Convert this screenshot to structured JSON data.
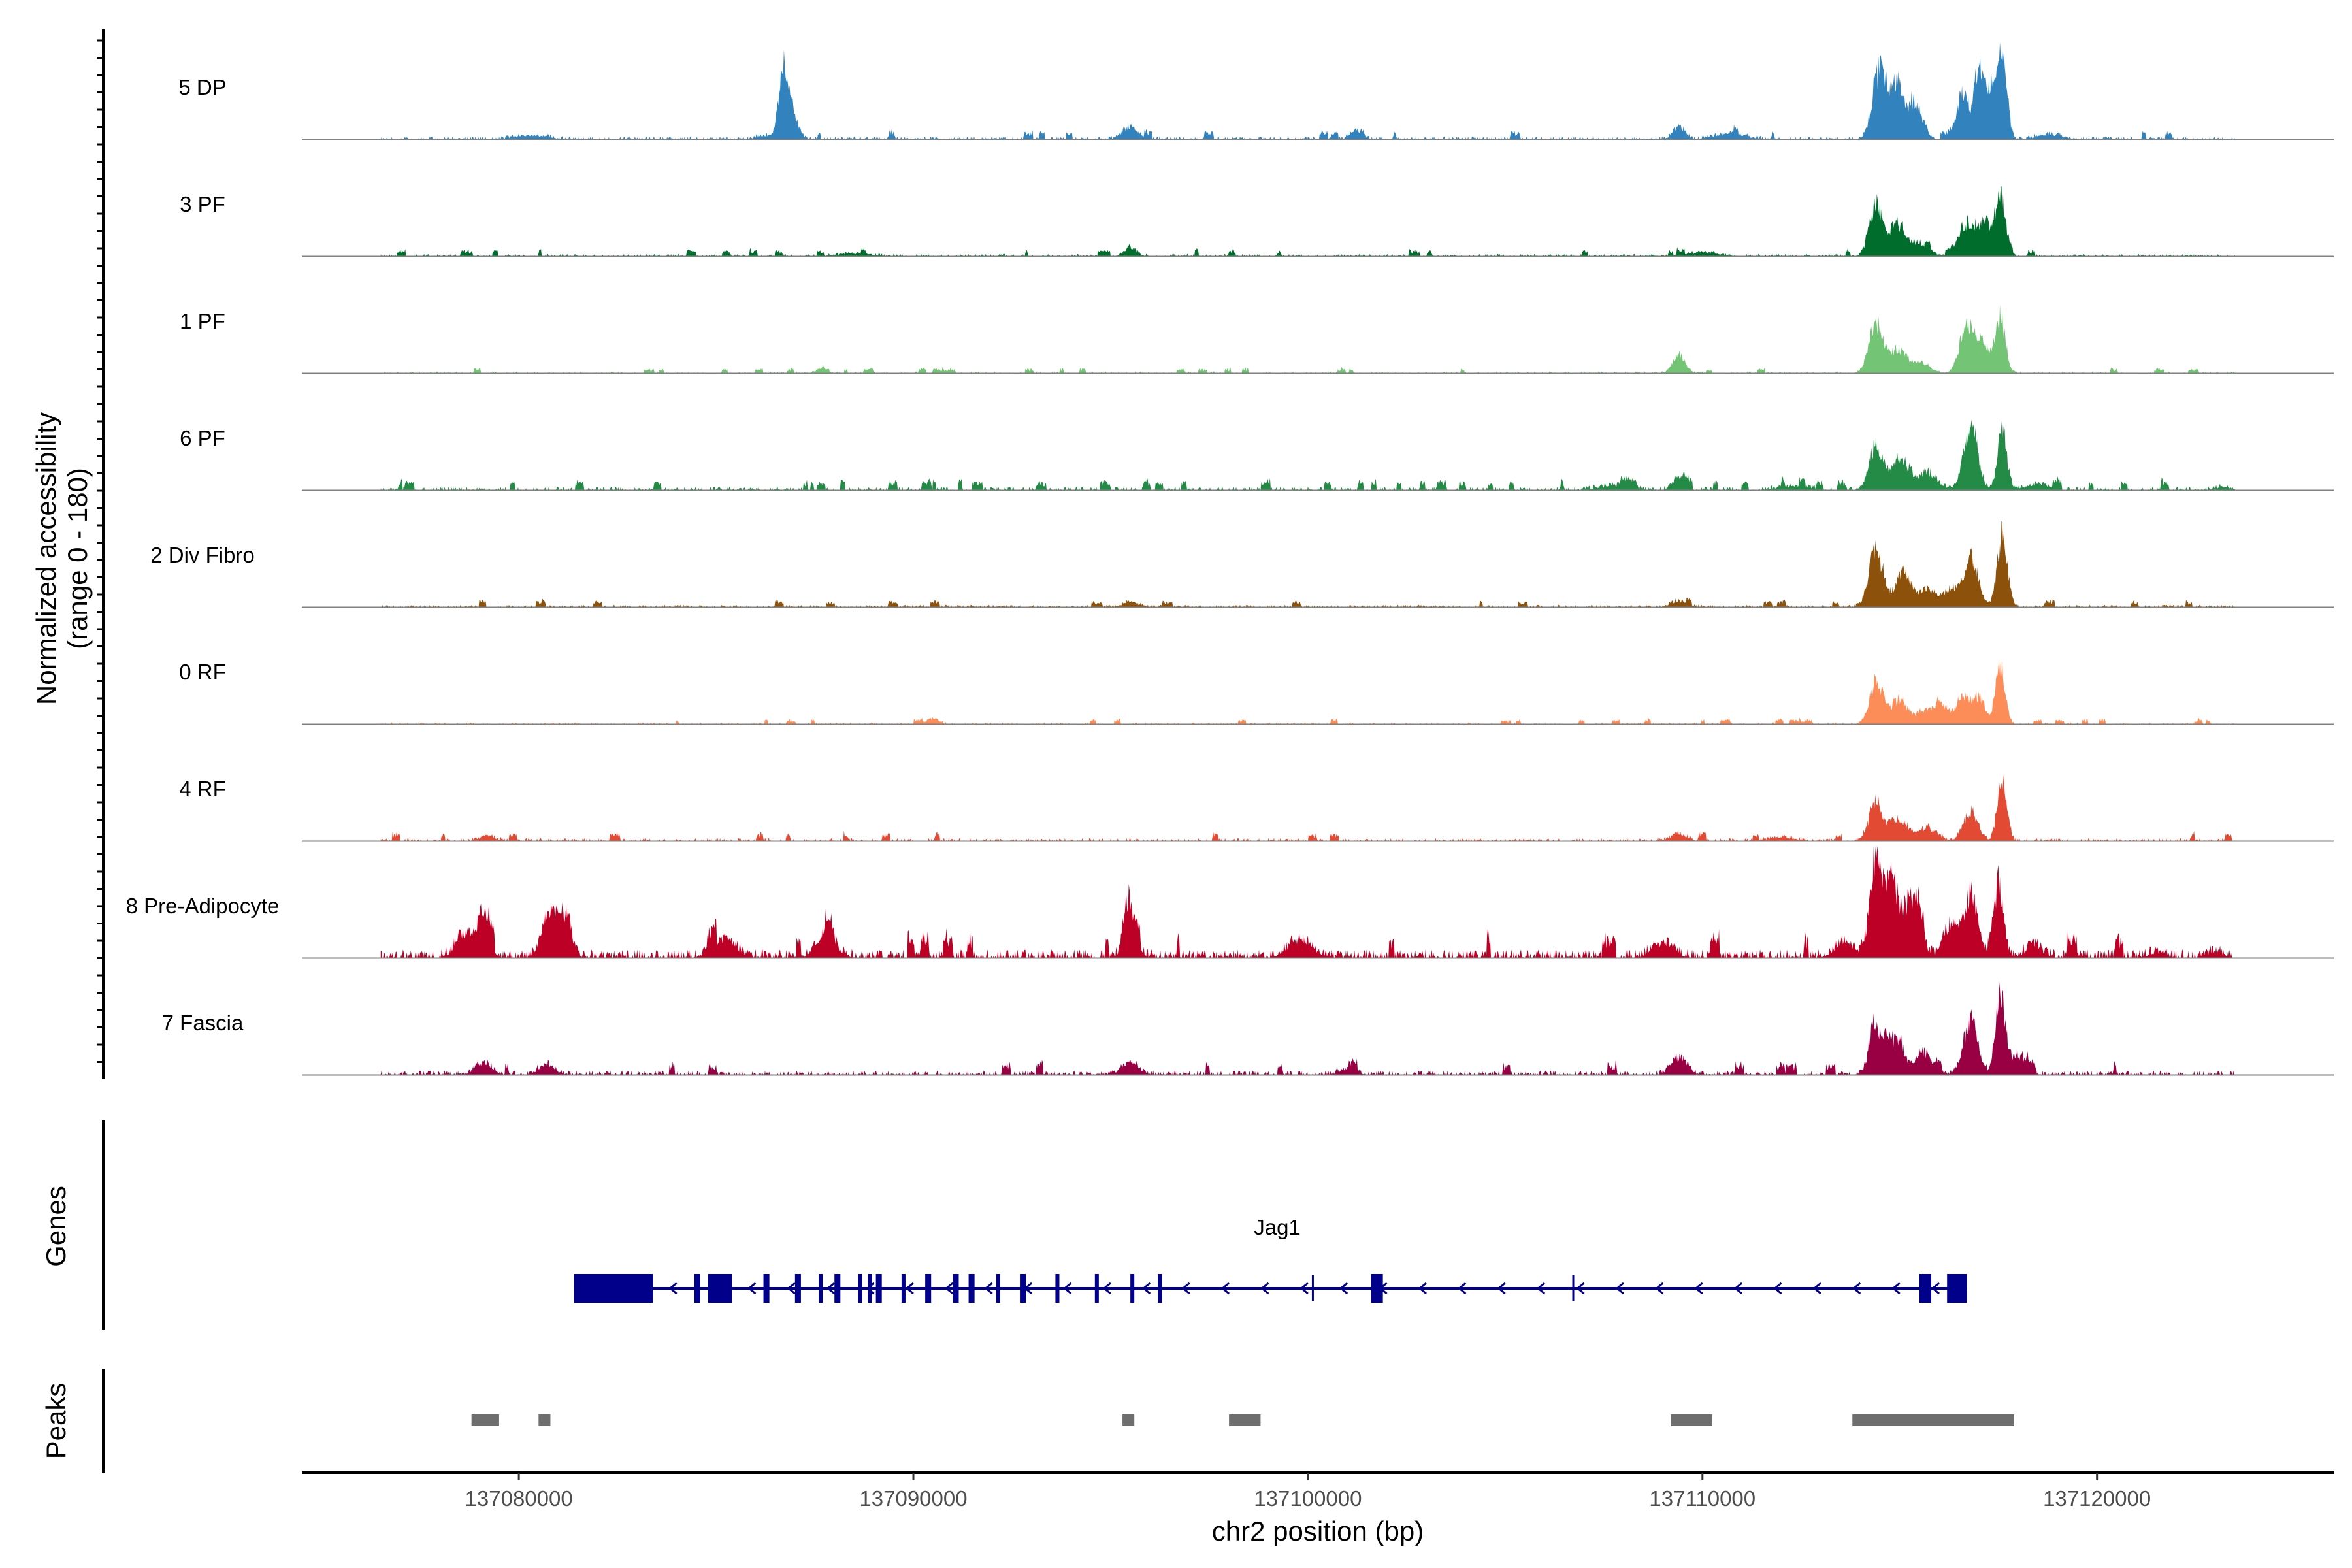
{
  "chart_data": {
    "type": "area",
    "title": "",
    "xlabel": "chr2 position (bp)",
    "ylabel": "Normalized accessibility",
    "ylabel_range": "(range 0 - 180)",
    "ylim": [
      0,
      180
    ],
    "xlim": [
      137074500,
      137126000
    ],
    "x_ticks": [
      137080000,
      137090000,
      137100000,
      137110000,
      137120000
    ],
    "x_tick_labels": [
      "137080000",
      "137090000",
      "137100000",
      "137110000",
      "137120000"
    ],
    "coverage_extent": [
      137076500,
      137123500
    ],
    "series": [
      {
        "name": "5 DP",
        "color": "#3182bd",
        "background": {
          "level": 5,
          "density": 0.55,
          "seed": 11
        },
        "peaks": [
          [
            137086700,
            120,
            110
          ],
          [
            137086900,
            60,
            150
          ],
          [
            137086300,
            8,
            250
          ],
          [
            137095500,
            25,
            200
          ],
          [
            137101200,
            18,
            150
          ],
          [
            137080300,
            8,
            400
          ],
          [
            137109400,
            25,
            150
          ],
          [
            137110700,
            10,
            400
          ],
          [
            137114500,
            140,
            180
          ],
          [
            137114950,
            105,
            150
          ],
          [
            137115400,
            70,
            180
          ],
          [
            137116600,
            90,
            150
          ],
          [
            137117000,
            120,
            120
          ],
          [
            137117300,
            100,
            160
          ],
          [
            137117600,
            150,
            120
          ],
          [
            137118800,
            10,
            300
          ]
        ]
      },
      {
        "name": "3 PF",
        "color": "#006d2c",
        "background": {
          "level": 4,
          "density": 0.5,
          "seed": 23
        },
        "peaks": [
          [
            137095500,
            18,
            150
          ],
          [
            137088500,
            6,
            400
          ],
          [
            137114400,
            105,
            170
          ],
          [
            137114950,
            60,
            200
          ],
          [
            137115500,
            25,
            250
          ],
          [
            137116700,
            65,
            200
          ],
          [
            137117150,
            60,
            170
          ],
          [
            137117550,
            115,
            130
          ],
          [
            137110000,
            8,
            400
          ]
        ]
      },
      {
        "name": "1 PF",
        "color": "#74c476",
        "background": {
          "level": 3,
          "density": 0.45,
          "seed": 37
        },
        "peaks": [
          [
            137087700,
            12,
            120
          ],
          [
            137109400,
            38,
            150
          ],
          [
            137114400,
            95,
            180
          ],
          [
            137114950,
            45,
            200
          ],
          [
            137115500,
            20,
            250
          ],
          [
            137116700,
            95,
            180
          ],
          [
            137117100,
            60,
            160
          ],
          [
            137117550,
            110,
            130
          ]
        ]
      },
      {
        "name": "6 PF",
        "color": "#238b45",
        "background": {
          "level": 6,
          "density": 0.5,
          "seed": 49
        },
        "peaks": [
          [
            137109400,
            30,
            150
          ],
          [
            137107800,
            10,
            400
          ],
          [
            137112300,
            8,
            400
          ],
          [
            137114400,
            90,
            170
          ],
          [
            137115000,
            65,
            200
          ],
          [
            137115700,
            35,
            250
          ],
          [
            137116800,
            120,
            180
          ],
          [
            137117600,
            115,
            120
          ],
          [
            137118500,
            12,
            300
          ],
          [
            137123200,
            6,
            200
          ]
        ]
      },
      {
        "name": "2 Div Fibro",
        "color": "#8c510a",
        "background": {
          "level": 4,
          "density": 0.5,
          "seed": 61
        },
        "peaks": [
          [
            137095500,
            10,
            200
          ],
          [
            137109400,
            12,
            200
          ],
          [
            137114400,
            110,
            180
          ],
          [
            137115100,
            70,
            200
          ],
          [
            137115700,
            35,
            200
          ],
          [
            137116800,
            95,
            180
          ],
          [
            137117600,
            140,
            130
          ],
          [
            137116300,
            35,
            200
          ]
        ]
      },
      {
        "name": "0 RF",
        "color": "#fc8d59",
        "background": {
          "level": 3,
          "density": 0.45,
          "seed": 73
        },
        "peaks": [
          [
            137090500,
            12,
            150
          ],
          [
            137114400,
            85,
            170
          ],
          [
            137115000,
            50,
            200
          ],
          [
            137115700,
            25,
            250
          ],
          [
            137116600,
            55,
            150
          ],
          [
            137117000,
            55,
            150
          ],
          [
            137117550,
            115,
            120
          ],
          [
            137116100,
            30,
            200
          ]
        ]
      },
      {
        "name": "4 RF",
        "color": "#e34a33",
        "background": {
          "level": 5,
          "density": 0.5,
          "seed": 97
        },
        "peaks": [
          [
            137079200,
            10,
            200
          ],
          [
            137109400,
            15,
            200
          ],
          [
            137114400,
            75,
            180
          ],
          [
            137115000,
            40,
            200
          ],
          [
            137115700,
            25,
            250
          ],
          [
            137116800,
            60,
            180
          ],
          [
            137117600,
            125,
            120
          ],
          [
            137112000,
            8,
            300
          ]
        ]
      },
      {
        "name": "8 Pre-Adipocyte",
        "color": "#bd0026",
        "background": {
          "level": 14,
          "density": 0.65,
          "seed": 109
        },
        "peaks": [
          [
            137079100,
            90,
            150
          ],
          [
            137078600,
            50,
            200
          ],
          [
            137080800,
            95,
            200
          ],
          [
            137081200,
            70,
            150
          ],
          [
            137085200,
            35,
            300
          ],
          [
            137087800,
            40,
            250
          ],
          [
            137095500,
            90,
            150
          ],
          [
            137099800,
            35,
            300
          ],
          [
            137109000,
            30,
            250
          ],
          [
            137113600,
            30,
            250
          ],
          [
            137114400,
            190,
            160
          ],
          [
            137114800,
            155,
            150
          ],
          [
            137115300,
            120,
            200
          ],
          [
            137116300,
            60,
            200
          ],
          [
            137116800,
            125,
            160
          ],
          [
            137117500,
            140,
            130
          ],
          [
            137118400,
            25,
            200
          ],
          [
            137121500,
            10,
            200
          ],
          [
            137123000,
            12,
            200
          ]
        ]
      },
      {
        "name": "7 Fascia",
        "color": "#980043",
        "background": {
          "level": 7,
          "density": 0.55,
          "seed": 131
        },
        "peaks": [
          [
            137079100,
            25,
            200
          ],
          [
            137080700,
            20,
            200
          ],
          [
            137095500,
            25,
            200
          ],
          [
            137101000,
            12,
            200
          ],
          [
            137109400,
            35,
            200
          ],
          [
            137114400,
            85,
            170
          ],
          [
            137114900,
            75,
            200
          ],
          [
            137115600,
            45,
            200
          ],
          [
            137116800,
            110,
            180
          ],
          [
            137117550,
            160,
            120
          ],
          [
            137118000,
            40,
            200
          ]
        ]
      }
    ]
  },
  "genes_track": {
    "label": "Genes",
    "gene_name": "Jag1",
    "strand": "-",
    "color": "#00008b",
    "transcript": [
      137081400,
      137116700
    ],
    "exons": [
      [
        137081400,
        137083400
      ],
      [
        137084450,
        137084600
      ],
      [
        137084800,
        137085400
      ],
      [
        137086200,
        137086350
      ],
      [
        137087000,
        137087150
      ],
      [
        137087600,
        137087700
      ],
      [
        137088000,
        137088150
      ],
      [
        137088600,
        137088700
      ],
      [
        137088850,
        137088950
      ],
      [
        137089050,
        137089200
      ],
      [
        137089700,
        137089800
      ],
      [
        137090300,
        137090450
      ],
      [
        137091000,
        137091150
      ],
      [
        137091400,
        137091550
      ],
      [
        137092100,
        137092200
      ],
      [
        137092700,
        137092850
      ],
      [
        137093600,
        137093700
      ],
      [
        137094600,
        137094700
      ],
      [
        137095500,
        137095600
      ],
      [
        137096200,
        137096300
      ],
      [
        137101600,
        137101900
      ],
      [
        137115500,
        137115800
      ],
      [
        137116200,
        137116700
      ]
    ],
    "introns": [
      [
        137100100,
        137100120
      ],
      [
        137106700,
        137106720
      ]
    ]
  },
  "peaks_track": {
    "label": "Peaks",
    "color": "#6e6e6e",
    "regions": [
      [
        137078800,
        137079500
      ],
      [
        137080500,
        137080800
      ],
      [
        137095300,
        137095600
      ],
      [
        137098000,
        137098800
      ],
      [
        137109200,
        137110250
      ],
      [
        137113800,
        137117900
      ]
    ]
  }
}
